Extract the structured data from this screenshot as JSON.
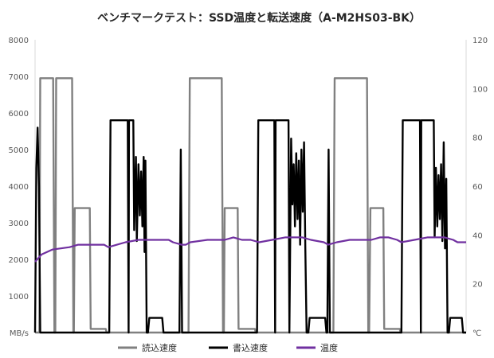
{
  "chart_data": {
    "type": "line",
    "title": "ベンチマークテスト：SSD温度と転送速度（A-M2HS03-BK）",
    "x_range": [
      0,
      100
    ],
    "y_left": {
      "unit": "MB/s",
      "range": [
        0,
        8000
      ],
      "ticks": [
        "1000",
        "2000",
        "3000",
        "4000",
        "5000",
        "6000",
        "7000",
        "8000"
      ]
    },
    "y_right": {
      "unit": "℃",
      "range": [
        0,
        120
      ],
      "ticks": [
        "20",
        "40",
        "60",
        "80",
        "100",
        "120"
      ]
    },
    "grid": false,
    "legend_position": "bottom",
    "series": [
      {
        "name": "読込速度",
        "axis": "left",
        "color": "#808080",
        "points": [
          [
            0,
            0
          ],
          [
            1.0,
            0
          ],
          [
            1.2,
            6950
          ],
          [
            4.2,
            6950
          ],
          [
            4.5,
            0
          ],
          [
            4.7,
            0
          ],
          [
            4.9,
            6950
          ],
          [
            8.6,
            6950
          ],
          [
            8.9,
            0
          ],
          [
            9.0,
            0
          ],
          [
            9.2,
            3400
          ],
          [
            12.7,
            3400
          ],
          [
            12.9,
            100
          ],
          [
            16.4,
            100
          ],
          [
            16.6,
            0
          ],
          [
            35.6,
            0
          ],
          [
            35.9,
            6950
          ],
          [
            43.3,
            6950
          ],
          [
            43.6,
            0
          ],
          [
            43.8,
            0
          ],
          [
            44.0,
            3400
          ],
          [
            47.0,
            3400
          ],
          [
            47.2,
            100
          ],
          [
            51.0,
            100
          ],
          [
            51.2,
            0
          ],
          [
            69.2,
            0
          ],
          [
            69.5,
            6950
          ],
          [
            77.0,
            6950
          ],
          [
            77.3,
            0
          ],
          [
            77.5,
            0
          ],
          [
            77.8,
            3400
          ],
          [
            80.8,
            3400
          ],
          [
            81.0,
            100
          ],
          [
            84.6,
            100
          ],
          [
            84.8,
            0
          ],
          [
            100,
            0
          ]
        ]
      },
      {
        "name": "書込速度",
        "axis": "left",
        "color": "#000000",
        "points": [
          [
            0,
            0
          ],
          [
            0.3,
            4500
          ],
          [
            0.6,
            5600
          ],
          [
            0.9,
            4000
          ],
          [
            1.2,
            0
          ],
          [
            17.2,
            0
          ],
          [
            17.5,
            5800
          ],
          [
            21.5,
            5800
          ],
          [
            21.7,
            0
          ],
          [
            21.8,
            5800
          ],
          [
            22.8,
            5800
          ],
          [
            23.0,
            2800
          ],
          [
            23.4,
            4800
          ],
          [
            23.6,
            2500
          ],
          [
            24.0,
            4600
          ],
          [
            24.3,
            3200
          ],
          [
            24.6,
            4400
          ],
          [
            24.9,
            2900
          ],
          [
            25.2,
            4800
          ],
          [
            25.4,
            2200
          ],
          [
            25.6,
            4700
          ],
          [
            25.9,
            0
          ],
          [
            26.2,
            0
          ],
          [
            26.5,
            400
          ],
          [
            29.5,
            400
          ],
          [
            29.8,
            0
          ],
          [
            33.5,
            0
          ],
          [
            33.8,
            5000
          ],
          [
            34.1,
            0
          ],
          [
            51.5,
            0
          ],
          [
            51.8,
            5800
          ],
          [
            55.5,
            5800
          ],
          [
            55.7,
            0
          ],
          [
            55.8,
            5800
          ],
          [
            58.8,
            5800
          ],
          [
            59.0,
            0
          ],
          [
            59.4,
            5300
          ],
          [
            59.7,
            3500
          ],
          [
            60.0,
            4600
          ],
          [
            60.3,
            2900
          ],
          [
            60.6,
            4900
          ],
          [
            60.9,
            3100
          ],
          [
            61.2,
            4700
          ],
          [
            61.5,
            2400
          ],
          [
            61.8,
            5000
          ],
          [
            62.1,
            3300
          ],
          [
            62.4,
            5200
          ],
          [
            62.7,
            2300
          ],
          [
            63.0,
            0
          ],
          [
            63.4,
            0
          ],
          [
            63.7,
            400
          ],
          [
            67.3,
            400
          ],
          [
            67.6,
            0
          ],
          [
            67.8,
            0
          ],
          [
            68.1,
            5000
          ],
          [
            68.4,
            0
          ],
          [
            85.0,
            0
          ],
          [
            85.3,
            5800
          ],
          [
            89.3,
            5800
          ],
          [
            89.5,
            0
          ],
          [
            89.6,
            5800
          ],
          [
            92.5,
            5800
          ],
          [
            92.7,
            2600
          ],
          [
            93.0,
            4500
          ],
          [
            93.3,
            2900
          ],
          [
            93.6,
            4300
          ],
          [
            93.9,
            3100
          ],
          [
            94.2,
            4600
          ],
          [
            94.5,
            2500
          ],
          [
            94.8,
            5200
          ],
          [
            95.1,
            2300
          ],
          [
            95.4,
            4200
          ],
          [
            95.7,
            0
          ],
          [
            96.0,
            0
          ],
          [
            96.3,
            400
          ],
          [
            99.0,
            400
          ],
          [
            99.3,
            0
          ],
          [
            100,
            0
          ]
        ]
      },
      {
        "name": "温度",
        "axis": "right",
        "color": "#7030A0",
        "points": [
          [
            0,
            29
          ],
          [
            1.5,
            32
          ],
          [
            4,
            34
          ],
          [
            8,
            35
          ],
          [
            10,
            36
          ],
          [
            15,
            36
          ],
          [
            16,
            36
          ],
          [
            17,
            35
          ],
          [
            19,
            36
          ],
          [
            21,
            37
          ],
          [
            24,
            38
          ],
          [
            28,
            38
          ],
          [
            31,
            38
          ],
          [
            32,
            37
          ],
          [
            34,
            36
          ],
          [
            35,
            36
          ],
          [
            36,
            37
          ],
          [
            40,
            38
          ],
          [
            44,
            38
          ],
          [
            46,
            39
          ],
          [
            48,
            38
          ],
          [
            50,
            38
          ],
          [
            52,
            37
          ],
          [
            55,
            38
          ],
          [
            58,
            39
          ],
          [
            62,
            39
          ],
          [
            64,
            38
          ],
          [
            67,
            37
          ],
          [
            68,
            36
          ],
          [
            70,
            37
          ],
          [
            73,
            38
          ],
          [
            78,
            38
          ],
          [
            80,
            39
          ],
          [
            82,
            39
          ],
          [
            84,
            38
          ],
          [
            85,
            37
          ],
          [
            88,
            38
          ],
          [
            91,
            39
          ],
          [
            95,
            39
          ],
          [
            97,
            38
          ],
          [
            98,
            37
          ],
          [
            100,
            37
          ]
        ]
      }
    ]
  }
}
